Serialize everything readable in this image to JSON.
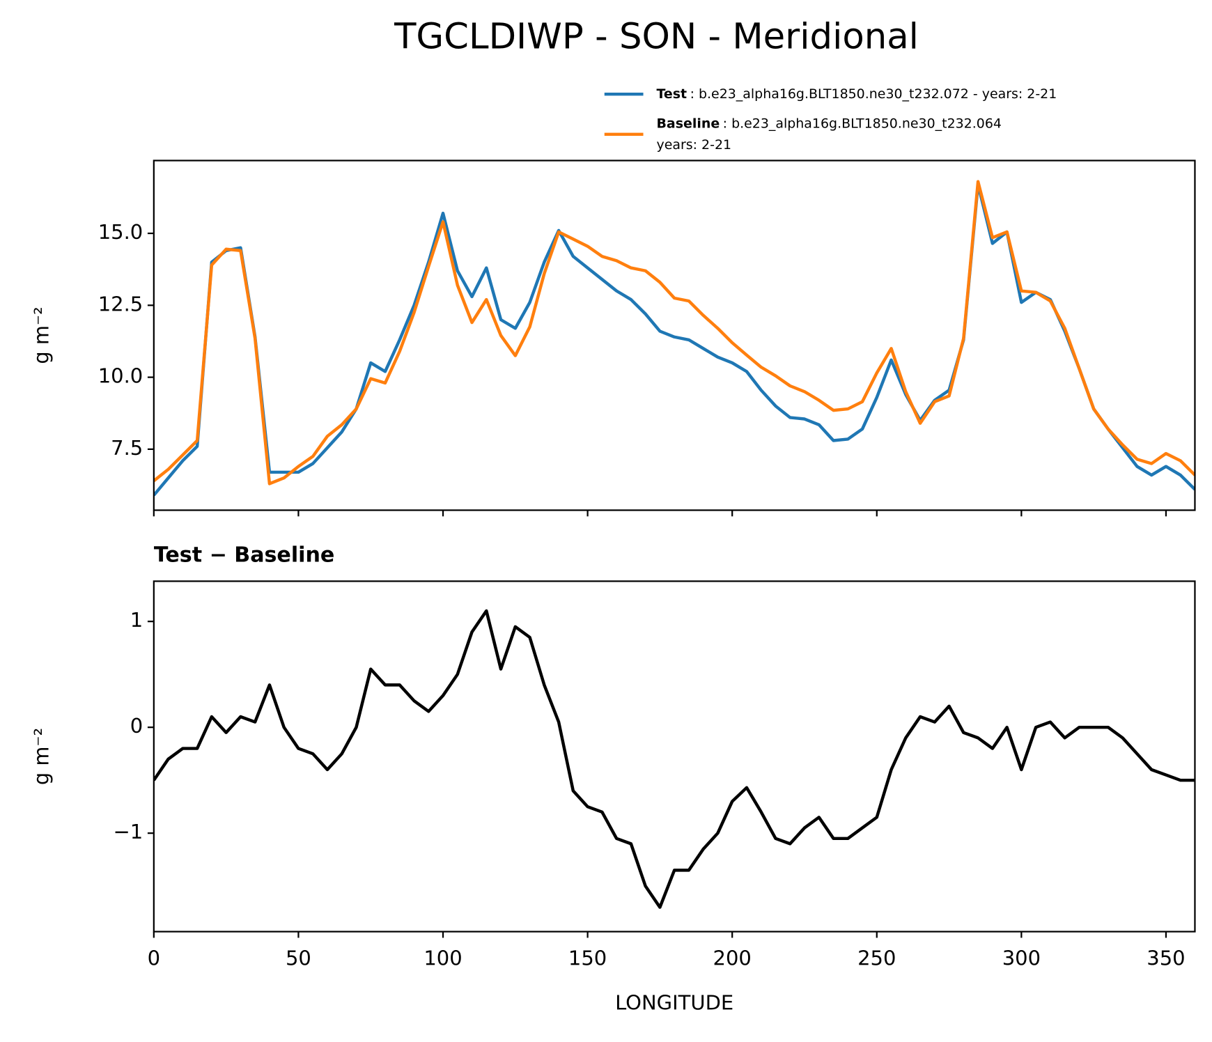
{
  "chart_data": [
    {
      "type": "line",
      "title": "TGCLDIWP - SON - Meridional",
      "ylabel": "g m⁻²",
      "x": [
        0,
        5,
        10,
        15,
        20,
        25,
        30,
        35,
        40,
        45,
        50,
        55,
        60,
        65,
        70,
        75,
        80,
        85,
        90,
        95,
        100,
        105,
        110,
        115,
        120,
        125,
        130,
        135,
        140,
        145,
        150,
        155,
        160,
        165,
        170,
        175,
        180,
        185,
        190,
        195,
        200,
        205,
        210,
        215,
        220,
        225,
        230,
        235,
        240,
        245,
        250,
        255,
        260,
        265,
        270,
        275,
        280,
        285,
        290,
        295,
        300,
        305,
        310,
        315,
        320,
        325,
        330,
        335,
        340,
        345,
        350,
        355,
        360
      ],
      "series": [
        {
          "name": "Test",
          "label_detail": [
            ": b.e23_alpha16g.BLT1850.ne30_t232.072 - years: 2-21"
          ],
          "color": "#1f77b4",
          "values": [
            5.9,
            6.5,
            7.1,
            7.6,
            14.0,
            14.4,
            14.5,
            11.4,
            6.7,
            6.7,
            6.7,
            7.0,
            7.55,
            8.1,
            8.9,
            10.5,
            10.2,
            11.3,
            12.5,
            14.0,
            15.7,
            13.7,
            12.8,
            13.8,
            12.0,
            11.7,
            12.6,
            14.0,
            15.1,
            14.2,
            13.8,
            13.4,
            13.0,
            12.7,
            12.2,
            11.6,
            11.4,
            11.3,
            11.0,
            10.7,
            10.5,
            10.2,
            9.55,
            9.0,
            8.6,
            8.55,
            8.35,
            7.8,
            7.85,
            8.2,
            9.3,
            10.6,
            9.4,
            8.5,
            9.2,
            9.55,
            11.3,
            16.7,
            14.65,
            15.05,
            12.6,
            12.95,
            12.7,
            11.6,
            10.3,
            8.9,
            8.2,
            7.55,
            6.9,
            6.6,
            6.9,
            6.6,
            6.1
          ]
        },
        {
          "name": "Baseline",
          "label_detail": [
            ": b.e23_alpha16g.BLT1850.ne30_t232.064",
            "years: 2-21"
          ],
          "color": "#ff7f0e",
          "values": [
            6.4,
            6.8,
            7.3,
            7.8,
            13.9,
            14.45,
            14.4,
            11.35,
            6.3,
            6.5,
            6.9,
            7.25,
            7.95,
            8.35,
            8.9,
            9.95,
            9.8,
            10.9,
            12.25,
            13.85,
            15.4,
            13.2,
            11.9,
            12.7,
            11.45,
            10.75,
            11.75,
            13.6,
            15.05,
            14.8,
            14.55,
            14.2,
            14.05,
            13.8,
            13.7,
            13.3,
            12.75,
            12.65,
            12.15,
            11.7,
            11.2,
            10.77,
            10.35,
            10.05,
            9.7,
            9.5,
            9.2,
            8.85,
            8.9,
            9.15,
            10.15,
            11.0,
            9.5,
            8.4,
            9.15,
            9.35,
            11.35,
            16.8,
            14.85,
            15.05,
            13.0,
            12.95,
            12.65,
            11.7,
            10.3,
            8.9,
            8.2,
            7.65,
            7.15,
            7.0,
            7.35,
            7.1,
            6.6
          ]
        }
      ],
      "xlim": [
        0,
        360
      ],
      "xticks": [
        0,
        50,
        100,
        150,
        200,
        250,
        300,
        350
      ],
      "show_xtick_labels": false,
      "ylim": [
        5.38,
        17.53
      ],
      "yticks": [
        7.5,
        {
          "value": 10,
          "label": "10.0"
        },
        12.5,
        {
          "value": 15,
          "label": "15.0"
        }
      ]
    },
    {
      "type": "line",
      "title": "Test − Baseline",
      "xlabel": "LONGITUDE",
      "ylabel": "g m⁻²",
      "x": [
        0,
        5,
        10,
        15,
        20,
        25,
        30,
        35,
        40,
        45,
        50,
        55,
        60,
        65,
        70,
        75,
        80,
        85,
        90,
        95,
        100,
        105,
        110,
        115,
        120,
        125,
        130,
        135,
        140,
        145,
        150,
        155,
        160,
        165,
        170,
        175,
        180,
        185,
        190,
        195,
        200,
        205,
        210,
        215,
        220,
        225,
        230,
        235,
        240,
        245,
        250,
        255,
        260,
        265,
        270,
        275,
        280,
        285,
        290,
        295,
        300,
        305,
        310,
        315,
        320,
        325,
        330,
        335,
        340,
        345,
        350,
        355,
        360
      ],
      "color": "#000000",
      "values": [
        -0.5,
        -0.3,
        -0.2,
        -0.2,
        0.1,
        -0.05,
        0.1,
        0.05,
        0.4,
        0.0,
        -0.2,
        -0.25,
        -0.4,
        -0.25,
        0.0,
        0.55,
        0.4,
        0.4,
        0.25,
        0.15,
        0.3,
        0.5,
        0.9,
        1.1,
        0.55,
        0.95,
        0.85,
        0.4,
        0.05,
        -0.6,
        -0.75,
        -0.8,
        -1.05,
        -1.1,
        -1.5,
        -1.7,
        -1.35,
        -1.35,
        -1.15,
        -1.0,
        -0.7,
        -0.57,
        -0.8,
        -1.05,
        -1.1,
        -0.95,
        -0.85,
        -1.05,
        -1.05,
        -0.95,
        -0.85,
        -0.4,
        -0.1,
        0.1,
        0.05,
        0.2,
        -0.05,
        -0.1,
        -0.2,
        0.0,
        -0.4,
        0.0,
        0.05,
        -0.1,
        0.0,
        0.0,
        0.0,
        -0.1,
        -0.25,
        -0.4,
        -0.45,
        -0.5,
        -0.5
      ],
      "xlim": [
        0,
        360
      ],
      "xticks": [
        0,
        50,
        100,
        150,
        200,
        250,
        300,
        350
      ],
      "show_xtick_labels": true,
      "ylim": [
        -1.93,
        1.38
      ],
      "yticks": [
        {
          "value": -1,
          "label": "−1"
        },
        0,
        1
      ]
    }
  ]
}
